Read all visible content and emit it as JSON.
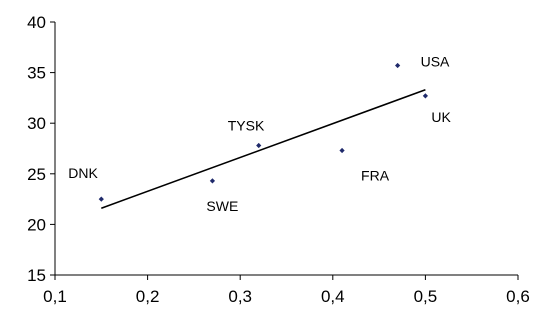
{
  "chart_data": {
    "type": "scatter",
    "title": "",
    "xlabel": "",
    "ylabel": "",
    "xlim": [
      0.1,
      0.6
    ],
    "ylim": [
      15,
      40
    ],
    "x_ticks": [
      "0,1",
      "0,2",
      "0,3",
      "0,4",
      "0,5",
      "0,6"
    ],
    "y_ticks": [
      "15",
      "20",
      "25",
      "30",
      "35",
      "40"
    ],
    "grid": false,
    "legend": "none",
    "point_color": "#1f2a6b",
    "points": [
      {
        "label": "DNK",
        "x": 0.15,
        "y": 22.5
      },
      {
        "label": "SWE",
        "x": 0.27,
        "y": 24.3
      },
      {
        "label": "TYSK",
        "x": 0.32,
        "y": 27.8
      },
      {
        "label": "FRA",
        "x": 0.41,
        "y": 27.3
      },
      {
        "label": "USA",
        "x": 0.47,
        "y": 35.7
      },
      {
        "label": "UK",
        "x": 0.5,
        "y": 32.7
      }
    ],
    "trendline": {
      "x": [
        0.15,
        0.5
      ],
      "y": [
        21.6,
        33.3
      ]
    }
  }
}
